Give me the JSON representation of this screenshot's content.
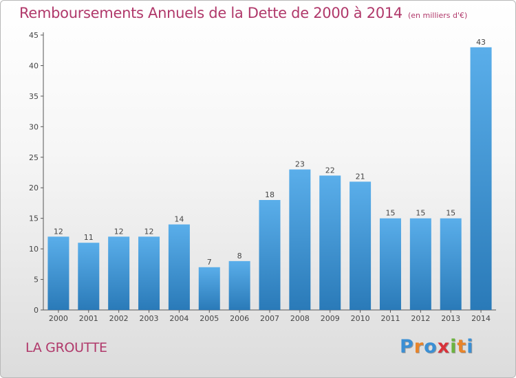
{
  "chart_data": {
    "type": "bar",
    "title": "Remboursements Annuels de la Dette de 2000 à 2014",
    "subtitle": "(en milliers d'€)",
    "categories": [
      "2000",
      "2001",
      "2002",
      "2003",
      "2004",
      "2005",
      "2006",
      "2007",
      "2008",
      "2009",
      "2010",
      "2011",
      "2012",
      "2013",
      "2014"
    ],
    "values": [
      12,
      11,
      12,
      12,
      14,
      7,
      8,
      18,
      23,
      22,
      21,
      15,
      15,
      15,
      43
    ],
    "ylim": [
      0,
      45
    ],
    "yticks": [
      0,
      5,
      10,
      15,
      20,
      25,
      30,
      35,
      40,
      45
    ],
    "grid": false,
    "bar_color_top": "#5aaeea",
    "bar_color_bottom": "#2a7ab8"
  },
  "footer": {
    "commune": "LA GROUTTE",
    "logo": [
      "P",
      "r",
      "o",
      "x",
      "i",
      "t",
      "i"
    ],
    "logo_colors": [
      "#3b8fd4",
      "#e8842a",
      "#3b8fd4",
      "#d8323a",
      "#6cb33f",
      "#e8842a",
      "#3b8fd4"
    ]
  },
  "colors": {
    "title": "#b0386a",
    "axis": "#555555"
  }
}
